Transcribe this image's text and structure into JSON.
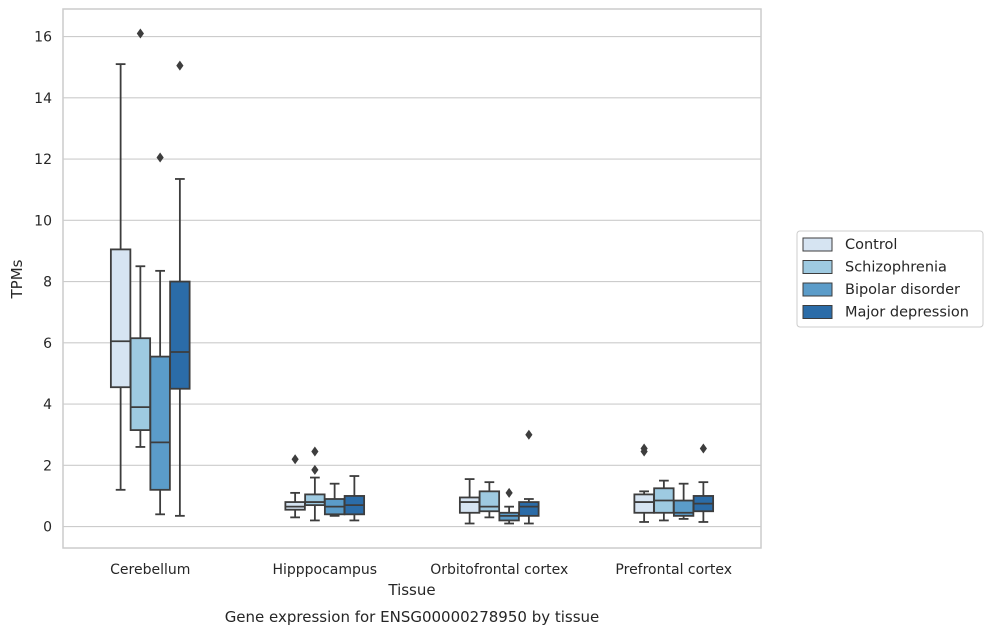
{
  "chart_data": {
    "type": "box",
    "title": "",
    "caption": "Gene expression for ENSG00000278950 by tissue",
    "xlabel": "Tissue",
    "ylabel": "TPMs",
    "ylim": [
      -0.7,
      16.9
    ],
    "yticks": [
      0,
      2,
      4,
      6,
      8,
      10,
      12,
      14,
      16
    ],
    "grid": "horizontal",
    "legend_position": "right",
    "categories": [
      "Cerebellum",
      "Hipppocampus",
      "Orbitofrontal cortex",
      "Prefrontal cortex"
    ],
    "series": [
      {
        "name": "Control",
        "color": "#d6e4f2",
        "boxes": [
          {
            "whisker_low": 1.2,
            "q1": 4.55,
            "median": 6.05,
            "q3": 9.05,
            "whisker_high": 15.1,
            "outliers": []
          },
          {
            "whisker_low": 0.3,
            "q1": 0.55,
            "median": 0.65,
            "q3": 0.8,
            "whisker_high": 1.1,
            "outliers": [
              2.2
            ]
          },
          {
            "whisker_low": 0.1,
            "q1": 0.45,
            "median": 0.8,
            "q3": 0.95,
            "whisker_high": 1.55,
            "outliers": []
          },
          {
            "whisker_low": 0.15,
            "q1": 0.45,
            "median": 0.8,
            "q3": 1.05,
            "whisker_high": 1.15,
            "outliers": [
              2.45,
              2.55
            ]
          }
        ]
      },
      {
        "name": "Schizophrenia",
        "color": "#9ecae1",
        "boxes": [
          {
            "whisker_low": 2.6,
            "q1": 3.15,
            "median": 3.9,
            "q3": 6.15,
            "whisker_high": 8.5,
            "outliers": [
              16.1
            ]
          },
          {
            "whisker_low": 0.2,
            "q1": 0.7,
            "median": 0.8,
            "q3": 1.05,
            "whisker_high": 1.6,
            "outliers": [
              1.85,
              2.45
            ]
          },
          {
            "whisker_low": 0.3,
            "q1": 0.5,
            "median": 0.65,
            "q3": 1.15,
            "whisker_high": 1.45,
            "outliers": []
          },
          {
            "whisker_low": 0.2,
            "q1": 0.45,
            "median": 0.85,
            "q3": 1.25,
            "whisker_high": 1.5,
            "outliers": []
          }
        ]
      },
      {
        "name": "Bipolar disorder",
        "color": "#5b9cc9",
        "boxes": [
          {
            "whisker_low": 0.4,
            "q1": 1.2,
            "median": 2.75,
            "q3": 5.55,
            "whisker_high": 8.35,
            "outliers": [
              12.05
            ]
          },
          {
            "whisker_low": 0.35,
            "q1": 0.4,
            "median": 0.65,
            "q3": 0.9,
            "whisker_high": 1.4,
            "outliers": []
          },
          {
            "whisker_low": 0.1,
            "q1": 0.2,
            "median": 0.35,
            "q3": 0.45,
            "whisker_high": 0.65,
            "outliers": [
              1.1
            ]
          },
          {
            "whisker_low": 0.25,
            "q1": 0.35,
            "median": 0.45,
            "q3": 0.85,
            "whisker_high": 1.4,
            "outliers": []
          }
        ]
      },
      {
        "name": "Major depression",
        "color": "#2b6ca8",
        "boxes": [
          {
            "whisker_low": 0.35,
            "q1": 4.5,
            "median": 5.7,
            "q3": 8.0,
            "whisker_high": 11.35,
            "outliers": [
              15.05
            ]
          },
          {
            "whisker_low": 0.2,
            "q1": 0.4,
            "median": 0.7,
            "q3": 1.0,
            "whisker_high": 1.65,
            "outliers": []
          },
          {
            "whisker_low": 0.1,
            "q1": 0.35,
            "median": 0.65,
            "q3": 0.8,
            "whisker_high": 0.9,
            "outliers": [
              3.0
            ]
          },
          {
            "whisker_low": 0.15,
            "q1": 0.5,
            "median": 0.75,
            "q3": 1.0,
            "whisker_high": 1.45,
            "outliers": [
              2.55
            ]
          }
        ]
      }
    ]
  }
}
